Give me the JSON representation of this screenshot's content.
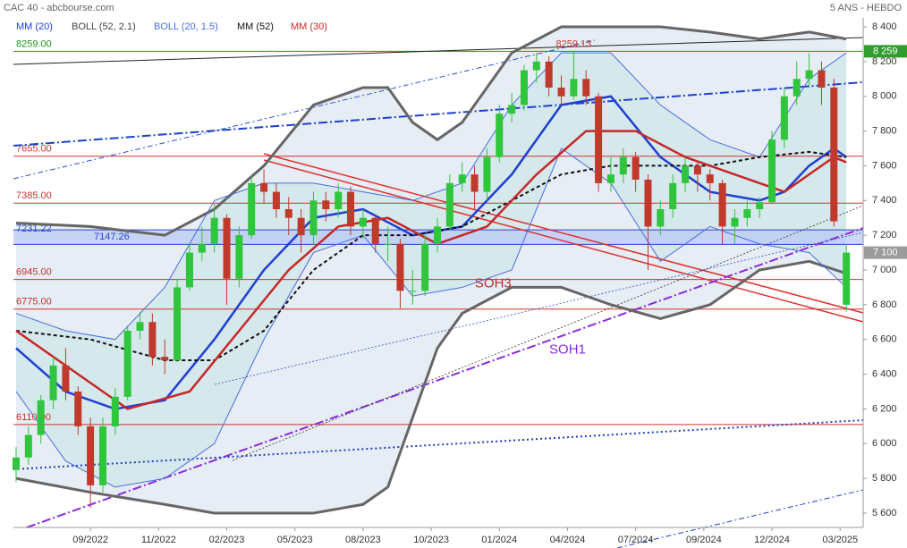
{
  "chart_data": {
    "type": "candlestick",
    "title": "CAC 40 - abcbourse.com",
    "subtitle": "5 ANS - HEBDO",
    "xlim": [
      0,
      68
    ],
    "xticks": [
      {
        "value": 6,
        "label": "09/2022"
      },
      {
        "value": 11.5,
        "label": "11/2022"
      },
      {
        "value": 17,
        "label": "02/2023"
      },
      {
        "value": 22.5,
        "label": "05/2023"
      },
      {
        "value": 28,
        "label": "08/2023"
      },
      {
        "value": 33.5,
        "label": "10/2023"
      },
      {
        "value": 39,
        "label": "01/2024"
      },
      {
        "value": 44.5,
        "label": "04/2024"
      },
      {
        "value": 50,
        "label": "07/2024"
      },
      {
        "value": 55.5,
        "label": "09/2024"
      },
      {
        "value": 61,
        "label": "12/2024"
      },
      {
        "value": 66.5,
        "label": "03/2025"
      }
    ],
    "ylim": [
      5600,
      8400
    ],
    "yticks": [
      {
        "value": 5600,
        "label": "5 600"
      },
      {
        "value": 5800,
        "label": "5 800"
      },
      {
        "value": 6000,
        "label": "6 000"
      },
      {
        "value": 6200,
        "label": "6 200"
      },
      {
        "value": 6400,
        "label": "6 400"
      },
      {
        "value": 6600,
        "label": "6 600"
      },
      {
        "value": 6800,
        "label": "6 800"
      },
      {
        "value": 7000,
        "label": "7 000"
      },
      {
        "value": 7200,
        "label": "7 200"
      },
      {
        "value": 7400,
        "label": "7 400"
      },
      {
        "value": 7600,
        "label": "7 600"
      },
      {
        "value": 7800,
        "label": "7 800"
      },
      {
        "value": 8000,
        "label": "8 000"
      },
      {
        "value": 8200,
        "label": "8 200"
      },
      {
        "value": 8400,
        "label": "8 400"
      }
    ],
    "up_color": "#2fc53c",
    "down_color": "#c0392b",
    "candles": [
      [
        5850,
        5980,
        5780,
        5920
      ],
      [
        5920,
        6100,
        5880,
        6050
      ],
      [
        6050,
        6280,
        6000,
        6250
      ],
      [
        6250,
        6500,
        6200,
        6450
      ],
      [
        6450,
        6550,
        6250,
        6300
      ],
      [
        6300,
        6330,
        6050,
        6100
      ],
      [
        6100,
        6150,
        5630,
        5760
      ],
      [
        5760,
        6150,
        5720,
        6100
      ],
      [
        6100,
        6320,
        6050,
        6270
      ],
      [
        6270,
        6680,
        6250,
        6650
      ],
      [
        6650,
        6760,
        6600,
        6700
      ],
      [
        6700,
        6750,
        6450,
        6500
      ],
      [
        6500,
        6600,
        6400,
        6480
      ],
      [
        6480,
        6950,
        6470,
        6900
      ],
      [
        6900,
        7150,
        6880,
        7100
      ],
      [
        7100,
        7250,
        7050,
        7150
      ],
      [
        7150,
        7380,
        7100,
        7300
      ],
      [
        7300,
        7320,
        6800,
        6950
      ],
      [
        6950,
        7250,
        6900,
        7200
      ],
      [
        7200,
        7550,
        7180,
        7500
      ],
      [
        7500,
        7580,
        7380,
        7450
      ],
      [
        7450,
        7500,
        7300,
        7350
      ],
      [
        7350,
        7420,
        7200,
        7300
      ],
      [
        7300,
        7350,
        7100,
        7200
      ],
      [
        7200,
        7450,
        7150,
        7400
      ],
      [
        7400,
        7450,
        7280,
        7350
      ],
      [
        7350,
        7500,
        7300,
        7450
      ],
      [
        7450,
        7480,
        7200,
        7250
      ],
      [
        7250,
        7350,
        7180,
        7300
      ],
      [
        7300,
        7320,
        7100,
        7150
      ],
      [
        7150,
        7250,
        7050,
        7150
      ],
      [
        7150,
        7180,
        6780,
        6880
      ],
      [
        6880,
        7000,
        6800,
        6880
      ],
      [
        6880,
        7200,
        6850,
        7150
      ],
      [
        7150,
        7300,
        7100,
        7250
      ],
      [
        7250,
        7550,
        7230,
        7500
      ],
      [
        7500,
        7620,
        7450,
        7550
      ],
      [
        7550,
        7600,
        7350,
        7450
      ],
      [
        7450,
        7700,
        7400,
        7650
      ],
      [
        7650,
        7950,
        7620,
        7900
      ],
      [
        7900,
        8020,
        7850,
        7950
      ],
      [
        7950,
        8180,
        7920,
        8150
      ],
      [
        8150,
        8250,
        8080,
        8200
      ],
      [
        8200,
        8230,
        8000,
        8050
      ],
      [
        8050,
        8120,
        7950,
        8000
      ],
      [
        8000,
        8259,
        7980,
        8100
      ],
      [
        8100,
        8150,
        7950,
        8000
      ],
      [
        8000,
        8020,
        7450,
        7500
      ],
      [
        7500,
        7650,
        7450,
        7550
      ],
      [
        7550,
        7700,
        7500,
        7650
      ],
      [
        7650,
        7680,
        7450,
        7520
      ],
      [
        7520,
        7550,
        7000,
        7250
      ],
      [
        7250,
        7400,
        7200,
        7350
      ],
      [
        7350,
        7550,
        7300,
        7500
      ],
      [
        7500,
        7650,
        7450,
        7600
      ],
      [
        7600,
        7620,
        7450,
        7550
      ],
      [
        7550,
        7580,
        7400,
        7500
      ],
      [
        7500,
        7520,
        7150,
        7250
      ],
      [
        7250,
        7350,
        7150,
        7300
      ],
      [
        7300,
        7400,
        7250,
        7350
      ],
      [
        7350,
        7420,
        7300,
        7390
      ],
      [
        7390,
        7800,
        7380,
        7750
      ],
      [
        7750,
        8050,
        7700,
        8000
      ],
      [
        8000,
        8200,
        7950,
        8100
      ],
      [
        8100,
        8250,
        8050,
        8150
      ],
      [
        8150,
        8200,
        7950,
        8050
      ],
      [
        8050,
        8100,
        7250,
        7280
      ],
      [
        6800,
        7150,
        6760,
        7100
      ]
    ],
    "bands": [
      {
        "name": "BOLL (52, 2.1)",
        "color": "#666666",
        "fill": "#dde7f0",
        "x": [
          0,
          6,
          12,
          16,
          20,
          24,
          28,
          30,
          32,
          34,
          36,
          40,
          44,
          48,
          52,
          56,
          60,
          64,
          67
        ],
        "upper": [
          7270,
          7250,
          7200,
          7350,
          7600,
          7950,
          8050,
          8050,
          7850,
          7750,
          7850,
          8250,
          8400,
          8400,
          8400,
          8370,
          8330,
          8370,
          8330
        ],
        "lower": [
          5800,
          5720,
          5650,
          5600,
          5600,
          5600,
          5650,
          5750,
          6150,
          6550,
          6750,
          6900,
          6900,
          6800,
          6720,
          6800,
          7000,
          7050,
          6980
        ]
      },
      {
        "name": "BOLL (20, 1.5)",
        "color": "#4a6ee0",
        "fill": "#cfe6ea",
        "x": [
          0,
          4,
          8,
          12,
          16,
          20,
          24,
          28,
          32,
          36,
          40,
          44,
          48,
          52,
          56,
          60,
          64,
          67
        ],
        "upper": [
          6750,
          6650,
          6600,
          6900,
          7400,
          7500,
          7500,
          7450,
          7400,
          7500,
          7950,
          8250,
          8250,
          7950,
          7750,
          7650,
          8100,
          8250
        ],
        "lower": [
          6300,
          5900,
          5750,
          5800,
          6000,
          6600,
          7100,
          7200,
          6850,
          6900,
          7000,
          7700,
          7500,
          7050,
          7250,
          7150,
          7100,
          6900
        ]
      }
    ],
    "series": [
      {
        "name": "MM (20)",
        "color": "#1f3fd1",
        "x": [
          0,
          4,
          8,
          12,
          16,
          20,
          24,
          28,
          32,
          36,
          40,
          44,
          48,
          52,
          56,
          60,
          62,
          64,
          66,
          67
        ],
        "values": [
          6550,
          6300,
          6200,
          6250,
          6600,
          7000,
          7300,
          7350,
          7200,
          7250,
          7550,
          7950,
          8000,
          7650,
          7450,
          7400,
          7450,
          7600,
          7700,
          7650
        ]
      },
      {
        "name": "MM (52)",
        "color": "#111111",
        "dash": true,
        "x": [
          0,
          6,
          12,
          16,
          20,
          24,
          28,
          32,
          36,
          40,
          44,
          48,
          52,
          56,
          60,
          64,
          67
        ],
        "values": [
          6650,
          6600,
          6480,
          6480,
          6650,
          7000,
          7200,
          7200,
          7250,
          7400,
          7550,
          7600,
          7600,
          7600,
          7650,
          7680,
          7650
        ]
      },
      {
        "name": "MM (30)",
        "color": "#c62828",
        "x": [
          0,
          4,
          9,
          14,
          18,
          22,
          26,
          30,
          34,
          38,
          42,
          46,
          50,
          54,
          58,
          62,
          64,
          66,
          67
        ],
        "values": [
          6650,
          6450,
          6200,
          6300,
          6650,
          7000,
          7250,
          7300,
          7150,
          7250,
          7550,
          7800,
          7800,
          7650,
          7550,
          7450,
          7550,
          7650,
          7620
        ]
      }
    ],
    "levels": [
      {
        "value": 8259,
        "label": "8259.00",
        "color": "#1a9a1a"
      },
      {
        "value": 7655,
        "label": "7655.00",
        "color": "#d03030"
      },
      {
        "value": 7385,
        "label": "7385.00",
        "color": "#d03030"
      },
      {
        "value": 6945,
        "label": "6945.00",
        "color": "#d03030"
      },
      {
        "value": 6775,
        "label": "6775.00",
        "color": "#d03030"
      },
      {
        "value": 6110,
        "label": "6110.00",
        "color": "#d03030"
      }
    ],
    "zone": {
      "top": 7231.22,
      "top_label": "7231.22",
      "bottom": 7147.26,
      "bottom_label": "7147.26",
      "color": "#2a45c8"
    },
    "price_tags": [
      {
        "value": 8259,
        "label": "8 259",
        "color": "#2f9e2f"
      },
      {
        "value": 7100,
        "label": "7 100",
        "color": "#9a9a9a"
      }
    ],
    "annotations": [
      {
        "text": "8259.13",
        "value": 8259.13,
        "x": 45
      },
      {
        "text": "SOH3",
        "value": 6920,
        "x": 38.5
      },
      {
        "text": "SOH1",
        "value": 6540,
        "x": 44.5
      }
    ]
  }
}
